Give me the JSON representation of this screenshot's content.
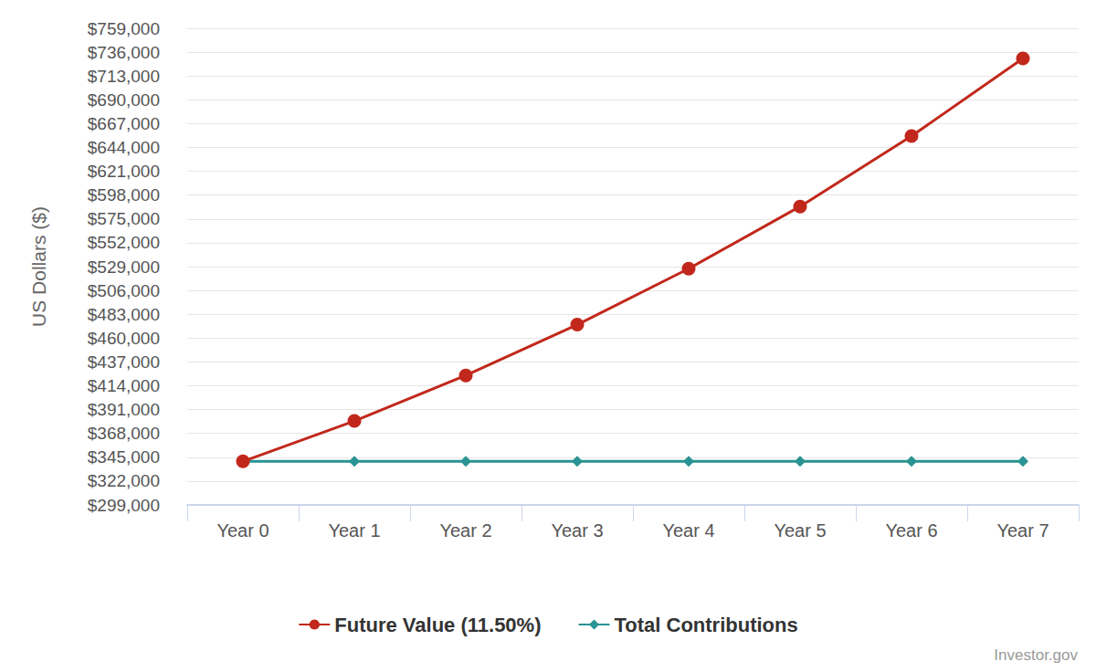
{
  "chart_data": {
    "type": "line",
    "y_label": "US Dollars ($)",
    "annotations": [
      "Investor.gov"
    ],
    "categories": [
      "Year 0",
      "Year 1",
      "Year 2",
      "Year 3",
      "Year 4",
      "Year 5",
      "Year 6",
      "Year 7"
    ],
    "series": [
      {
        "name": "Future Value (11.50%)",
        "color": "#c1281b",
        "marker": "circle",
        "line_style": "solid",
        "values": [
          341000,
          380000,
          424000,
          473000,
          527000,
          587000,
          655000,
          730000
        ]
      },
      {
        "name": "Total Contributions",
        "color": "#2a9393",
        "marker": "diamond",
        "line_style": "solid",
        "values": [
          341000,
          341000,
          341000,
          341000,
          341000,
          341000,
          341000,
          341000
        ]
      }
    ],
    "ylim": [
      299000,
      759000
    ],
    "yticks": [
      {
        "value": 299000,
        "label": "$299,000"
      },
      {
        "value": 322000,
        "label": "$322,000"
      },
      {
        "value": 345000,
        "label": "$345,000"
      },
      {
        "value": 368000,
        "label": "$368,000"
      },
      {
        "value": 391000,
        "label": "$391,000"
      },
      {
        "value": 414000,
        "label": "$414,000"
      },
      {
        "value": 437000,
        "label": "$437,000"
      },
      {
        "value": 460000,
        "label": "$460,000"
      },
      {
        "value": 483000,
        "label": "$483,000"
      },
      {
        "value": 506000,
        "label": "$506,000"
      },
      {
        "value": 529000,
        "label": "$529,000"
      },
      {
        "value": 552000,
        "label": "$552,000"
      },
      {
        "value": 575000,
        "label": "$575,000"
      },
      {
        "value": 598000,
        "label": "$598,000"
      },
      {
        "value": 621000,
        "label": "$621,000"
      },
      {
        "value": 644000,
        "label": "$644,000"
      },
      {
        "value": 667000,
        "label": "$667,000"
      },
      {
        "value": 690000,
        "label": "$690,000"
      },
      {
        "value": 713000,
        "label": "$713,000"
      },
      {
        "value": 736000,
        "label": "$736,000"
      },
      {
        "value": 759000,
        "label": "$759,000"
      }
    ],
    "grid": true,
    "legend": "bottom"
  }
}
